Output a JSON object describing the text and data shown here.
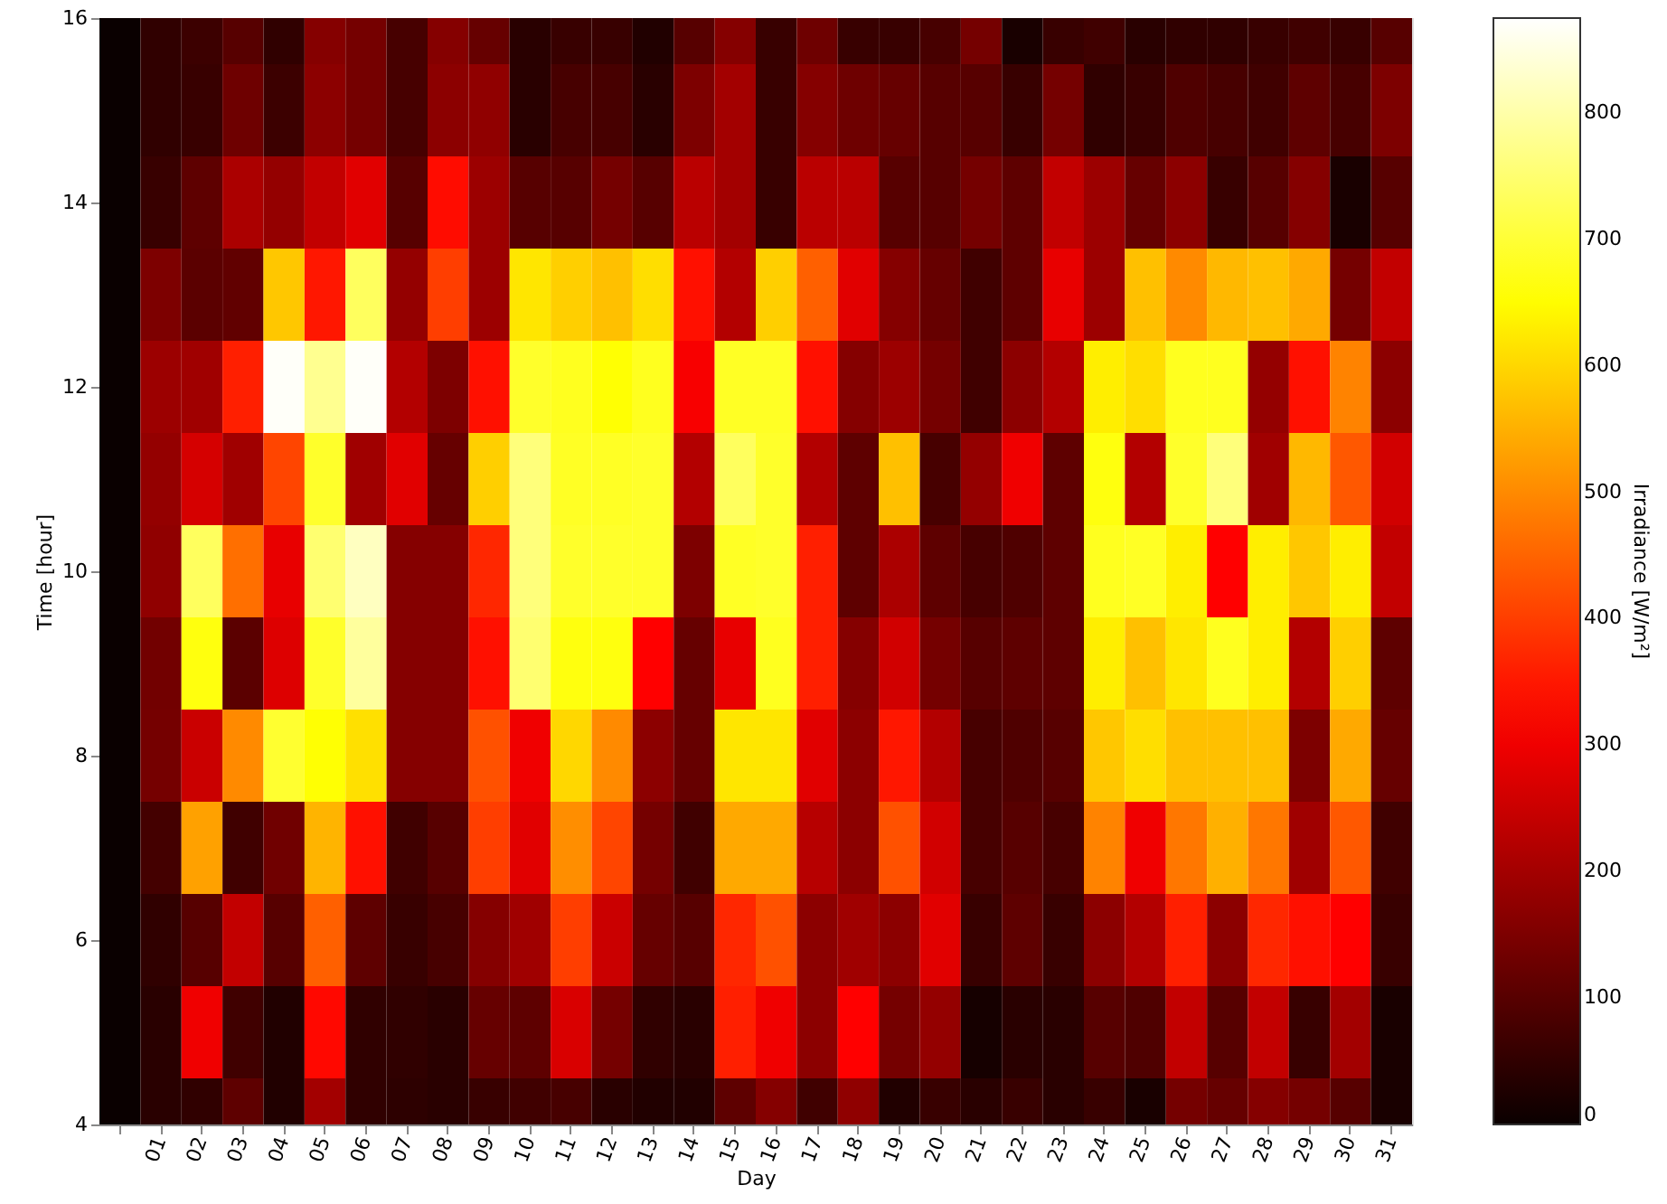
{
  "chart_data": {
    "type": "heatmap",
    "xlabel": "Day",
    "ylabel": "Time [hour]",
    "clabel": "Irradiance [W/m²]",
    "categories": [
      null,
      "01",
      "02",
      "03",
      "04",
      "05",
      "06",
      "07",
      "08",
      "09",
      "10",
      "11",
      "12",
      "13",
      "14",
      "15",
      "16",
      "17",
      "18",
      "19",
      "20",
      "21",
      "22",
      "23",
      "24",
      "25",
      "26",
      "27",
      "28",
      "29",
      "30",
      "31"
    ],
    "y_categories": [
      "16",
      null,
      "14",
      null,
      "12",
      null,
      "10",
      null,
      "8",
      null,
      "6",
      null,
      "4"
    ],
    "clim": [
      0,
      875
    ],
    "cticks": [
      0,
      100,
      200,
      300,
      400,
      500,
      600,
      700,
      800
    ],
    "cells": [
      [
        0,
        50,
        65,
        100,
        50,
        160,
        140,
        80,
        160,
        120,
        40,
        60,
        60,
        30,
        100,
        160,
        60,
        130,
        60,
        60,
        80,
        140,
        20,
        60,
        70,
        40,
        50,
        50,
        60,
        70,
        60,
        100
      ],
      [
        0,
        50,
        60,
        130,
        65,
        170,
        140,
        80,
        170,
        175,
        40,
        80,
        80,
        40,
        150,
        200,
        60,
        160,
        130,
        120,
        100,
        100,
        60,
        140,
        50,
        60,
        90,
        80,
        70,
        110,
        80,
        150
      ],
      [
        0,
        60,
        110,
        210,
        180,
        240,
        280,
        100,
        335,
        190,
        100,
        100,
        140,
        100,
        230,
        200,
        60,
        230,
        230,
        100,
        100,
        140,
        110,
        240,
        190,
        120,
        170,
        60,
        100,
        160,
        20,
        100
      ],
      [
        0,
        150,
        105,
        113,
        580,
        350,
        735,
        180,
        400,
        190,
        620,
        590,
        570,
        610,
        340,
        220,
        590,
        445,
        280,
        160,
        120,
        70,
        110,
        290,
        190,
        570,
        500,
        560,
        570,
        540,
        140,
        240
      ],
      [
        0,
        190,
        195,
        360,
        870,
        778,
        870,
        220,
        150,
        340,
        690,
        680,
        655,
        680,
        310,
        685,
        685,
        340,
        160,
        190,
        140,
        70,
        170,
        220,
        630,
        610,
        680,
        680,
        180,
        340,
        490,
        170
      ],
      [
        0,
        180,
        265,
        195,
        410,
        690,
        195,
        280,
        120,
        590,
        760,
        685,
        685,
        690,
        220,
        735,
        690,
        220,
        110,
        570,
        80,
        180,
        300,
        110,
        665,
        220,
        690,
        760,
        195,
        560,
        435,
        260
      ],
      [
        0,
        175,
        735,
        465,
        290,
        750,
        820,
        160,
        160,
        370,
        760,
        690,
        690,
        690,
        150,
        685,
        690,
        360,
        110,
        210,
        110,
        80,
        90,
        110,
        680,
        685,
        630,
        320,
        630,
        580,
        630,
        240
      ],
      [
        0,
        135,
        665,
        105,
        275,
        690,
        790,
        160,
        160,
        340,
        750,
        665,
        665,
        320,
        120,
        290,
        680,
        360,
        160,
        260,
        140,
        100,
        110,
        110,
        630,
        570,
        620,
        680,
        630,
        220,
        590,
        110
      ],
      [
        0,
        140,
        250,
        500,
        695,
        655,
        612,
        160,
        160,
        425,
        300,
        600,
        500,
        170,
        120,
        620,
        620,
        280,
        170,
        350,
        220,
        80,
        90,
        100,
        580,
        610,
        570,
        570,
        570,
        150,
        540,
        120
      ],
      [
        0,
        75,
        530,
        70,
        133,
        555,
        340,
        70,
        100,
        400,
        280,
        505,
        410,
        140,
        70,
        540,
        540,
        225,
        170,
        425,
        260,
        80,
        100,
        80,
        490,
        300,
        475,
        550,
        475,
        195,
        435,
        70
      ],
      [
        0,
        50,
        100,
        240,
        100,
        445,
        110,
        60,
        80,
        160,
        195,
        400,
        250,
        120,
        100,
        370,
        425,
        170,
        195,
        170,
        280,
        60,
        110,
        60,
        170,
        220,
        360,
        170,
        370,
        340,
        320,
        60
      ],
      [
        0,
        40,
        300,
        70,
        30,
        330,
        50,
        50,
        40,
        120,
        110,
        270,
        140,
        50,
        40,
        360,
        300,
        170,
        320,
        140,
        180,
        15,
        40,
        40,
        100,
        90,
        240,
        100,
        240,
        60,
        200,
        20
      ],
      [
        0,
        40,
        50,
        110,
        30,
        200,
        50,
        45,
        40,
        60,
        70,
        80,
        40,
        30,
        30,
        110,
        160,
        70,
        175,
        30,
        60,
        40,
        60,
        40,
        60,
        20,
        140,
        120,
        160,
        140,
        100,
        20
      ]
    ]
  }
}
